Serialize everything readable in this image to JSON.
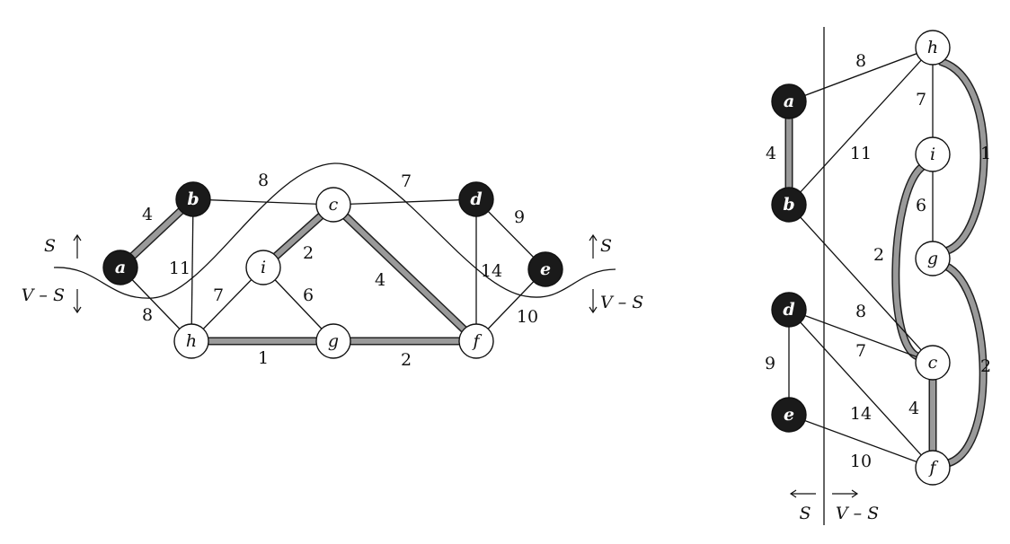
{
  "colors": {
    "cut_node": "#1a1a1a",
    "free_node": "#ffffff",
    "light_edge": "#9a9a9a",
    "edge": "#111111"
  },
  "left_graph": {
    "nodes": [
      {
        "id": "a",
        "label": "a",
        "in_s": true
      },
      {
        "id": "b",
        "label": "b",
        "in_s": true
      },
      {
        "id": "c",
        "label": "c",
        "in_s": false
      },
      {
        "id": "d",
        "label": "d",
        "in_s": true
      },
      {
        "id": "e",
        "label": "e",
        "in_s": true
      },
      {
        "id": "f",
        "label": "f",
        "in_s": false
      },
      {
        "id": "g",
        "label": "g",
        "in_s": false
      },
      {
        "id": "h",
        "label": "h",
        "in_s": false
      },
      {
        "id": "i",
        "label": "i",
        "in_s": false
      }
    ],
    "edges": [
      {
        "from": "a",
        "to": "b",
        "weight": "4",
        "highlighted": true
      },
      {
        "from": "b",
        "to": "c",
        "weight": "8",
        "highlighted": false
      },
      {
        "from": "c",
        "to": "d",
        "weight": "7",
        "highlighted": false
      },
      {
        "from": "d",
        "to": "e",
        "weight": "9",
        "highlighted": false
      },
      {
        "from": "a",
        "to": "h",
        "weight": "8",
        "highlighted": false
      },
      {
        "from": "b",
        "to": "h",
        "weight": "11",
        "highlighted": false
      },
      {
        "from": "h",
        "to": "i",
        "weight": "7",
        "highlighted": false
      },
      {
        "from": "i",
        "to": "c",
        "weight": "2",
        "highlighted": true
      },
      {
        "from": "i",
        "to": "g",
        "weight": "6",
        "highlighted": false
      },
      {
        "from": "c",
        "to": "f",
        "weight": "4",
        "highlighted": true
      },
      {
        "from": "d",
        "to": "f",
        "weight": "14",
        "highlighted": false
      },
      {
        "from": "e",
        "to": "f",
        "weight": "10",
        "highlighted": false
      },
      {
        "from": "h",
        "to": "g",
        "weight": "1",
        "highlighted": true
      },
      {
        "from": "g",
        "to": "f",
        "weight": "2",
        "highlighted": true
      }
    ],
    "cut_labels": {
      "s_left": "S",
      "vs_left": "V – S",
      "s_right": "S",
      "vs_right": "V – S"
    }
  },
  "right_graph": {
    "nodes": [
      {
        "id": "a",
        "label": "a",
        "in_s": true
      },
      {
        "id": "b",
        "label": "b",
        "in_s": true
      },
      {
        "id": "d",
        "label": "d",
        "in_s": true
      },
      {
        "id": "e",
        "label": "e",
        "in_s": true
      },
      {
        "id": "h",
        "label": "h",
        "in_s": false
      },
      {
        "id": "i",
        "label": "i",
        "in_s": false
      },
      {
        "id": "g",
        "label": "g",
        "in_s": false
      },
      {
        "id": "c",
        "label": "c",
        "in_s": false
      },
      {
        "id": "f",
        "label": "f",
        "in_s": false
      }
    ],
    "edges": [
      {
        "from": "a",
        "to": "h",
        "weight": "8",
        "highlighted": false
      },
      {
        "from": "a",
        "to": "b",
        "weight": "4",
        "highlighted": true
      },
      {
        "from": "b",
        "to": "h",
        "weight": "11",
        "highlighted": false
      },
      {
        "from": "h",
        "to": "i",
        "weight": "7",
        "highlighted": false
      },
      {
        "from": "h",
        "to": "g",
        "weight": "1",
        "highlighted": true
      },
      {
        "from": "i",
        "to": "g",
        "weight": "6",
        "highlighted": false
      },
      {
        "from": "i",
        "to": "c",
        "weight": "2",
        "highlighted": true
      },
      {
        "from": "g",
        "to": "f",
        "weight": "2",
        "highlighted": true
      },
      {
        "from": "b",
        "to": "c",
        "weight": "8",
        "highlighted": false
      },
      {
        "from": "d",
        "to": "c",
        "weight": "7",
        "highlighted": false
      },
      {
        "from": "d",
        "to": "e",
        "weight": "9",
        "highlighted": false
      },
      {
        "from": "d",
        "to": "f",
        "weight": "14",
        "highlighted": false
      },
      {
        "from": "c",
        "to": "f",
        "weight": "4",
        "highlighted": true
      },
      {
        "from": "e",
        "to": "f",
        "weight": "10",
        "highlighted": false
      }
    ],
    "cut_labels": {
      "s": "S",
      "vs": "V – S"
    }
  }
}
